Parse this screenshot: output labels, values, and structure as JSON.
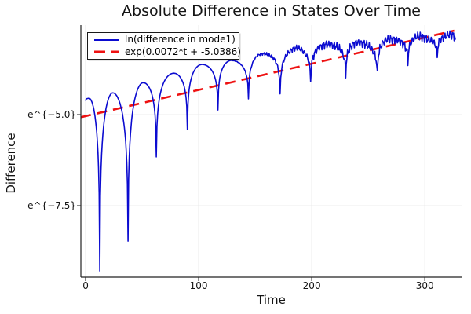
{
  "chart_data": {
    "type": "line",
    "title": "Absolute Difference in States Over Time",
    "xlabel": "Time",
    "ylabel": "Difference",
    "x_ticks": [
      0,
      100,
      200,
      300
    ],
    "y_ticks": [
      {
        "value_ln": -5.0,
        "label": "e^{−5.0}"
      },
      {
        "value_ln": -7.5,
        "label": "e^{−7.5}"
      }
    ],
    "xlim": [
      -4.2,
      332.5
    ],
    "ylim_ln": [
      -9.46,
      -2.54
    ],
    "grid": true,
    "legend_position": "top-left",
    "axis_color": "#222222",
    "grid_color": "#e7e7e7",
    "text_color": "#141414",
    "series": [
      {
        "name": "ln(difference in mode1)",
        "color": "#0b0bd0",
        "style": "solid",
        "shape": "log-oscillation: rounded humps with sharp cusp dips at zero crossings, exponential upward trend, noise growing after t≈130",
        "keypoints": [
          {
            "t": 0,
            "ln": -4.62,
            "kind": "dip"
          },
          {
            "t": 3,
            "ln": -4.55,
            "kind": "peak"
          },
          {
            "t": 12.5,
            "ln": -9.29,
            "kind": "dip"
          },
          {
            "t": 24,
            "ln": -4.4,
            "kind": "peak"
          },
          {
            "t": 37.5,
            "ln": -8.47,
            "kind": "dip"
          },
          {
            "t": 51,
            "ln": -4.12,
            "kind": "peak"
          },
          {
            "t": 62.5,
            "ln": -6.16,
            "kind": "dip"
          },
          {
            "t": 78,
            "ln": -3.86,
            "kind": "peak"
          },
          {
            "t": 90,
            "ln": -5.41,
            "kind": "dip"
          },
          {
            "t": 103,
            "ln": -3.62,
            "kind": "peak"
          },
          {
            "t": 117,
            "ln": -4.87,
            "kind": "dip"
          },
          {
            "t": 129,
            "ln": -3.51,
            "kind": "peak"
          },
          {
            "t": 144,
            "ln": -4.55,
            "kind": "dip"
          },
          {
            "t": 158,
            "ln": -3.32,
            "kind": "peak"
          },
          {
            "t": 172,
            "ln": -4.48,
            "kind": "dip"
          },
          {
            "t": 186,
            "ln": -3.19,
            "kind": "peak"
          },
          {
            "t": 199,
            "ln": -4.07,
            "kind": "dip"
          },
          {
            "t": 214,
            "ln": -3.04,
            "kind": "peak"
          },
          {
            "t": 230,
            "ln": -3.94,
            "kind": "dip"
          },
          {
            "t": 242,
            "ln": -3.04,
            "kind": "peak"
          },
          {
            "t": 258,
            "ln": -3.9,
            "kind": "dip"
          },
          {
            "t": 269,
            "ln": -2.89,
            "kind": "peak"
          },
          {
            "t": 285,
            "ln": -3.58,
            "kind": "dip"
          },
          {
            "t": 297,
            "ln": -2.87,
            "kind": "peak"
          },
          {
            "t": 311,
            "ln": -3.47,
            "kind": "dip"
          },
          {
            "t": 320,
            "ln": -2.82,
            "kind": "peak"
          },
          {
            "t": 327,
            "ln": -2.97,
            "kind": "dip"
          }
        ],
        "noise": {
          "onset_t": 128,
          "full_t": 215,
          "amplitude_ln": 0.16
        }
      },
      {
        "name": "exp(0.0072*t + -5.0386)",
        "color": "#ee1111",
        "style": "dashed",
        "fit_ln": {
          "slope": 0.0072,
          "intercept": -5.0386
        },
        "t_range": [
          -4.2,
          326
        ]
      }
    ]
  }
}
